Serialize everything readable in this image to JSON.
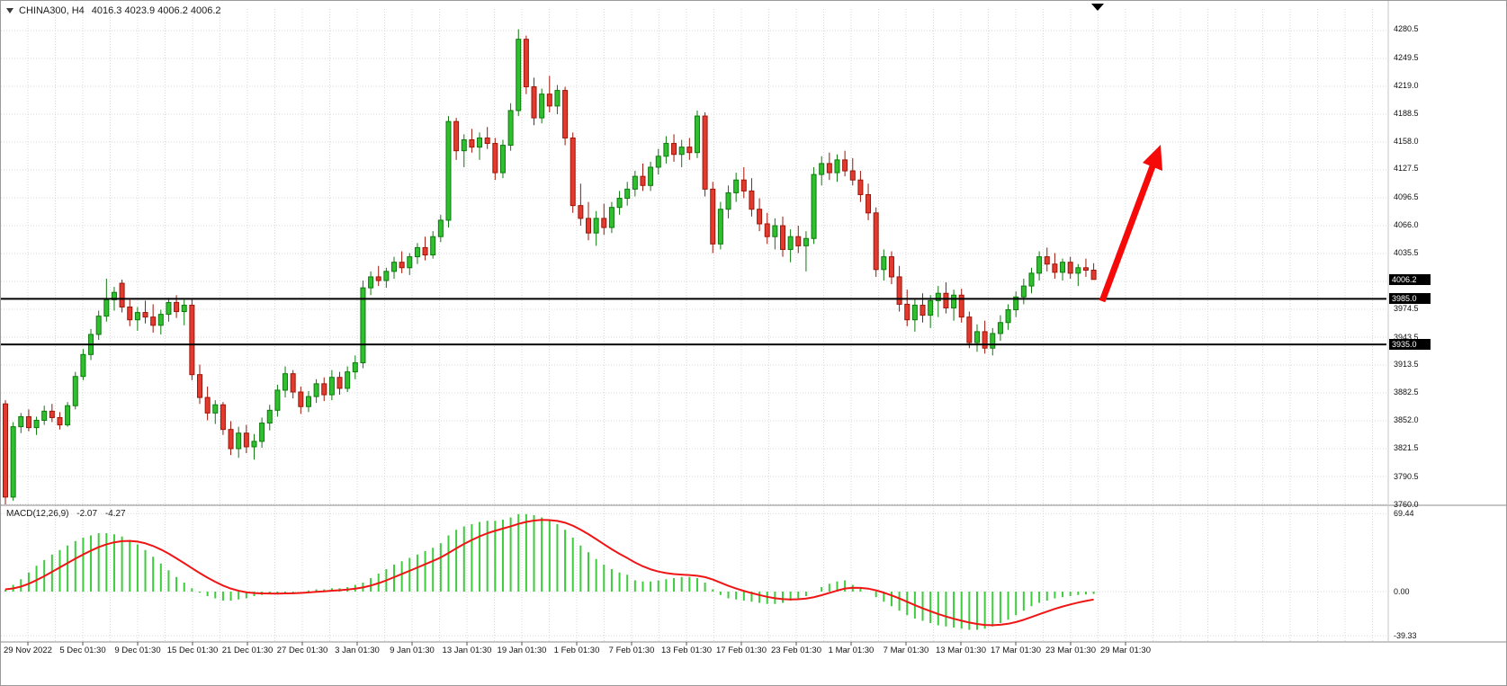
{
  "header": {
    "symbol": "CHINA300, H4",
    "ohlc_text": "4016.3 4023.9 4006.2 4006.2"
  },
  "price_tags": {
    "current": "4006.2",
    "resistance": "3985.0",
    "support": "3935.0"
  },
  "macd_panel": {
    "label": "MACD(12,26,9)",
    "macd_value": "-2.07",
    "signal_value": "-4.27",
    "y_ticks": [
      "69.44",
      "0.00",
      "-39.33"
    ]
  },
  "colors": {
    "up": "#2FBF2F",
    "up_stroke": "#0E7A0E",
    "down": "#E23A2E",
    "down_stroke": "#9E1508",
    "grid": "#D9D9D9",
    "level": "#000000",
    "hist": "#3ECC3E",
    "signal": "#F01515",
    "arrow": "#F60909",
    "tag_bg": "#000000",
    "tag_fg": "#FFFFFF"
  },
  "chart_data": [
    {
      "type": "candlestick",
      "title": "CHINA300, H4",
      "timeframe": "H4",
      "ylim": [
        3760.0,
        4280.5
      ],
      "y_ticks": [
        "4280.5",
        "4249.5",
        "4219.0",
        "4188.5",
        "4158.0",
        "4127.5",
        "4096.5",
        "4066.0",
        "4035.5",
        "3974.5",
        "3943.5",
        "3913.5",
        "3882.5",
        "3852.0",
        "3821.5",
        "3790.5",
        "3760.0"
      ],
      "x_labels": [
        "29 Nov 2022",
        "5 Dec 01:30",
        "9 Dec 01:30",
        "15 Dec 01:30",
        "21 Dec 01:30",
        "27 Dec 01:30",
        "3 Jan 01:30",
        "9 Jan 01:30",
        "13 Jan 01:30",
        "19 Jan 01:30",
        "1 Feb 01:30",
        "7 Feb 01:30",
        "13 Feb 01:30",
        "17 Feb 01:30",
        "23 Feb 01:30",
        "1 Mar 01:30",
        "7 Mar 01:30",
        "13 Mar 01:30",
        "17 Mar 01:30",
        "23 Mar 01:30",
        "29 Mar 01:30"
      ],
      "levels": [
        3985.0,
        3935.0
      ],
      "current_price": 4006.2,
      "last_bar_ohlc": [
        4016.3,
        4023.9,
        4006.2,
        4006.2
      ],
      "annotation": "thick red up-right arrow drawn from the 3985.0 level projecting a rise",
      "candles": [
        [
          3870,
          3874,
          3760,
          3768
        ],
        [
          3768,
          3850,
          3764,
          3845
        ],
        [
          3845,
          3860,
          3838,
          3856
        ],
        [
          3856,
          3864,
          3840,
          3844
        ],
        [
          3844,
          3856,
          3836,
          3852
        ],
        [
          3852,
          3868,
          3847,
          3862
        ],
        [
          3862,
          3870,
          3850,
          3855
        ],
        [
          3855,
          3861,
          3842,
          3847
        ],
        [
          3847,
          3872,
          3845,
          3868
        ],
        [
          3868,
          3905,
          3864,
          3900
        ],
        [
          3900,
          3930,
          3896,
          3924
        ],
        [
          3924,
          3952,
          3918,
          3946
        ],
        [
          3946,
          3972,
          3940,
          3966
        ],
        [
          3966,
          4007,
          3960,
          3984
        ],
        [
          3984,
          3998,
          3972,
          3992
        ],
        [
          4002,
          4006,
          3970,
          3976
        ],
        [
          3976,
          3984,
          3955,
          3962
        ],
        [
          3962,
          3976,
          3950,
          3970
        ],
        [
          3970,
          3983,
          3958,
          3965
        ],
        [
          3965,
          3979,
          3948,
          3956
        ],
        [
          3956,
          3973,
          3946,
          3968
        ],
        [
          3968,
          3986,
          3960,
          3981
        ],
        [
          3981,
          3989,
          3964,
          3971
        ],
        [
          3971,
          3984,
          3956,
          3978
        ],
        [
          3978,
          3985,
          3896,
          3902
        ],
        [
          3902,
          3913,
          3870,
          3877
        ],
        [
          3877,
          3889,
          3852,
          3860
        ],
        [
          3860,
          3874,
          3848,
          3869
        ],
        [
          3869,
          3872,
          3836,
          3842
        ],
        [
          3842,
          3851,
          3814,
          3821
        ],
        [
          3821,
          3845,
          3811,
          3838
        ],
        [
          3838,
          3847,
          3816,
          3823
        ],
        [
          3823,
          3837,
          3809,
          3829
        ],
        [
          3829,
          3855,
          3822,
          3849
        ],
        [
          3849,
          3869,
          3841,
          3863
        ],
        [
          3863,
          3891,
          3856,
          3885
        ],
        [
          3885,
          3911,
          3877,
          3903
        ],
        [
          3903,
          3907,
          3876,
          3883
        ],
        [
          3883,
          3889,
          3859,
          3867
        ],
        [
          3867,
          3884,
          3861,
          3878
        ],
        [
          3878,
          3897,
          3871,
          3892
        ],
        [
          3892,
          3899,
          3873,
          3880
        ],
        [
          3880,
          3907,
          3874,
          3899
        ],
        [
          3899,
          3905,
          3880,
          3887
        ],
        [
          3887,
          3911,
          3883,
          3905
        ],
        [
          3905,
          3923,
          3897,
          3915
        ],
        [
          3915,
          4005,
          3909,
          3997
        ],
        [
          3997,
          4015,
          3989,
          4009
        ],
        [
          4009,
          4021,
          3999,
          4005
        ],
        [
          4005,
          4019,
          3997,
          4015
        ],
        [
          4015,
          4031,
          4007,
          4025
        ],
        [
          4025,
          4037,
          4013,
          4019
        ],
        [
          4019,
          4035,
          4011,
          4031
        ],
        [
          4031,
          4046,
          4023,
          4041
        ],
        [
          4041,
          4053,
          4027,
          4033
        ],
        [
          4033,
          4059,
          4029,
          4053
        ],
        [
          4053,
          4077,
          4047,
          4071
        ],
        [
          4071,
          4185,
          4063,
          4179
        ],
        [
          4179,
          4183,
          4137,
          4147
        ],
        [
          4147,
          4165,
          4129,
          4159
        ],
        [
          4159,
          4171,
          4145,
          4151
        ],
        [
          4151,
          4167,
          4137,
          4161
        ],
        [
          4161,
          4173,
          4149,
          4155
        ],
        [
          4155,
          4161,
          4115,
          4123
        ],
        [
          4123,
          4159,
          4117,
          4153
        ],
        [
          4153,
          4199,
          4147,
          4191
        ],
        [
          4191,
          4280,
          4185,
          4269
        ],
        [
          4269,
          4273,
          4209,
          4217
        ],
        [
          4217,
          4227,
          4175,
          4183
        ],
        [
          4183,
          4215,
          4177,
          4209
        ],
        [
          4209,
          4229,
          4189,
          4196
        ],
        [
          4196,
          4219,
          4187,
          4213
        ],
        [
          4213,
          4217,
          4153,
          4161
        ],
        [
          4161,
          4167,
          4079,
          4087
        ],
        [
          4087,
          4111,
          4065,
          4073
        ],
        [
          4073,
          4091,
          4049,
          4057
        ],
        [
          4057,
          4081,
          4043,
          4073
        ],
        [
          4073,
          4089,
          4055,
          4063
        ],
        [
          4063,
          4091,
          4057,
          4085
        ],
        [
          4085,
          4103,
          4077,
          4095
        ],
        [
          4095,
          4113,
          4087,
          4105
        ],
        [
          4105,
          4125,
          4097,
          4119
        ],
        [
          4119,
          4133,
          4103,
          4109
        ],
        [
          4109,
          4135,
          4103,
          4129
        ],
        [
          4129,
          4149,
          4121,
          4141
        ],
        [
          4141,
          4163,
          4133,
          4155
        ],
        [
          4155,
          4165,
          4135,
          4143
        ],
        [
          4143,
          4159,
          4129,
          4151
        ],
        [
          4151,
          4161,
          4137,
          4145
        ],
        [
          4145,
          4191,
          4139,
          4185
        ],
        [
          4185,
          4189,
          4097,
          4105
        ],
        [
          4105,
          4113,
          4035,
          4045
        ],
        [
          4045,
          4091,
          4039,
          4083
        ],
        [
          4083,
          4109,
          4073,
          4101
        ],
        [
          4101,
          4123,
          4091,
          4115
        ],
        [
          4115,
          4129,
          4095,
          4103
        ],
        [
          4103,
          4117,
          4075,
          4083
        ],
        [
          4083,
          4095,
          4059,
          4067
        ],
        [
          4067,
          4079,
          4045,
          4053
        ],
        [
          4053,
          4073,
          4039,
          4065
        ],
        [
          4065,
          4075,
          4031,
          4039
        ],
        [
          4039,
          4061,
          4025,
          4053
        ],
        [
          4053,
          4065,
          4035,
          4043
        ],
        [
          4043,
          4059,
          4015,
          4051
        ],
        [
          4051,
          4129,
          4045,
          4121
        ],
        [
          4121,
          4141,
          4109,
          4133
        ],
        [
          4133,
          4145,
          4115,
          4123
        ],
        [
          4123,
          4143,
          4113,
          4137
        ],
        [
          4137,
          4147,
          4119,
          4125
        ],
        [
          4125,
          4139,
          4109,
          4115
        ],
        [
          4115,
          4125,
          4091,
          4099
        ],
        [
          4099,
          4111,
          4071,
          4079
        ],
        [
          4079,
          4085,
          4009,
          4017
        ],
        [
          4017,
          4039,
          4005,
          4031
        ],
        [
          4031,
          4037,
          4001,
          4009
        ],
        [
          4009,
          4021,
          3971,
          3979
        ],
        [
          3979,
          3995,
          3955,
          3962
        ],
        [
          3962,
          3985,
          3949,
          3978
        ],
        [
          3978,
          3991,
          3959,
          3967
        ],
        [
          3967,
          3989,
          3953,
          3983
        ],
        [
          3983,
          3999,
          3965,
          3991
        ],
        [
          3991,
          4003,
          3969,
          3975
        ],
        [
          3975,
          3995,
          3961,
          3989
        ],
        [
          3989,
          3996,
          3959,
          3965
        ],
        [
          3965,
          3971,
          3931,
          3937
        ],
        [
          3937,
          3957,
          3927,
          3949
        ],
        [
          3949,
          3961,
          3925,
          3931
        ],
        [
          3931,
          3953,
          3923,
          3947
        ],
        [
          3947,
          3967,
          3939,
          3959
        ],
        [
          3959,
          3979,
          3951,
          3973
        ],
        [
          3973,
          3993,
          3965,
          3987
        ],
        [
          3987,
          4007,
          3979,
          3999
        ],
        [
          3999,
          4019,
          3991,
          4013
        ],
        [
          4013,
          4037,
          4005,
          4031
        ],
        [
          4031,
          4041,
          4015,
          4023
        ],
        [
          4023,
          4035,
          4007,
          4014
        ],
        [
          4014,
          4029,
          4005,
          4025
        ],
        [
          4025,
          4031,
          4007,
          4013
        ],
        [
          4013,
          4023,
          3999,
          4019
        ],
        [
          4019,
          4029,
          4009,
          4016.3
        ],
        [
          4016.3,
          4023.9,
          4006.2,
          4006.2
        ]
      ]
    },
    {
      "type": "bar",
      "title": "MACD(12,26,9)",
      "macd_current": -2.07,
      "signal_current": -4.27,
      "ylim": [
        -39.33,
        69.44
      ],
      "y_ticks": [
        69.44,
        0.0,
        -39.33
      ],
      "values": [
        2,
        6,
        11,
        17,
        23,
        28,
        33,
        37,
        41,
        45,
        48,
        50,
        52,
        52,
        51,
        49,
        46,
        42,
        37,
        31,
        25,
        19,
        13,
        8,
        3,
        -1,
        -4,
        -6,
        -8,
        -8,
        -7,
        -6,
        -4,
        -3,
        -2,
        -2,
        -1,
        -1,
        0,
        1,
        2,
        2,
        3,
        3,
        4,
        6,
        8,
        12,
        16,
        20,
        24,
        27,
        30,
        33,
        36,
        39,
        43,
        50,
        55,
        58,
        60,
        62,
        63,
        63,
        64,
        66,
        69,
        69,
        68,
        66,
        63,
        60,
        55,
        48,
        41,
        35,
        29,
        24,
        20,
        17,
        15,
        10,
        9,
        9,
        10,
        11,
        12,
        13,
        13,
        12,
        8,
        2,
        -3,
        -6,
        -7,
        -8,
        -9,
        -10,
        -11,
        -11,
        -10,
        -8,
        -6,
        -4,
        0,
        4,
        7,
        9,
        10,
        6,
        3,
        0,
        -5,
        -9,
        -13,
        -17,
        -21,
        -24,
        -26,
        -28,
        -30,
        -31,
        -32,
        -33,
        -34,
        -34,
        -33,
        -31,
        -28,
        -25,
        -21,
        -17,
        -13,
        -10,
        -8,
        -6,
        -5,
        -4,
        -3,
        -2.5,
        -2.07
      ]
    }
  ]
}
